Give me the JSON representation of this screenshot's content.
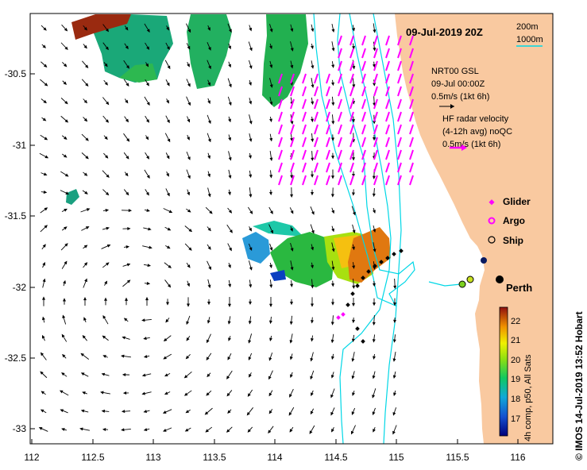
{
  "map": {
    "timestamp": "09-Jul-2019 20Z",
    "depth_legend": {
      "shallow": "200m",
      "deep": "1000m"
    },
    "x_ticks": [
      "112",
      "112.5",
      "113",
      "113.5",
      "114",
      "114.5",
      "115",
      "115.5",
      "116"
    ],
    "y_ticks": [
      "-30.5",
      "-31",
      "-31.5",
      "-32",
      "-32.5",
      "-33"
    ],
    "model_label": {
      "line1": "NRT00 GSL",
      "line2": "09-Jul 00:00Z",
      "line3": "0.5m/s (1kt 6h)"
    },
    "radar_label": {
      "line1": "HF radar velocity",
      "line2": "(4-12h avg) noQC",
      "line3": "0.5m/s (1kt 6h)"
    },
    "legend": {
      "glider": "Glider",
      "argo": "Argo",
      "ship": "Ship"
    },
    "city": "Perth",
    "colorbar": {
      "ticks": [
        "22",
        "21",
        "20",
        "19",
        "18",
        "17"
      ],
      "caption": "4h comp, p50, All Sats"
    },
    "credit": "© IMOS 14-Jul-2019 13:52 Hobart",
    "colors": {
      "land": "#f9c9a0",
      "radar_arrows": "#ff00ff",
      "isobath": "#00d7e6",
      "glider": "#ff00ff",
      "argo": "#ff00ff"
    },
    "icons": [
      "glider-marker-icon",
      "argo-marker-icon",
      "ship-marker-icon"
    ]
  }
}
